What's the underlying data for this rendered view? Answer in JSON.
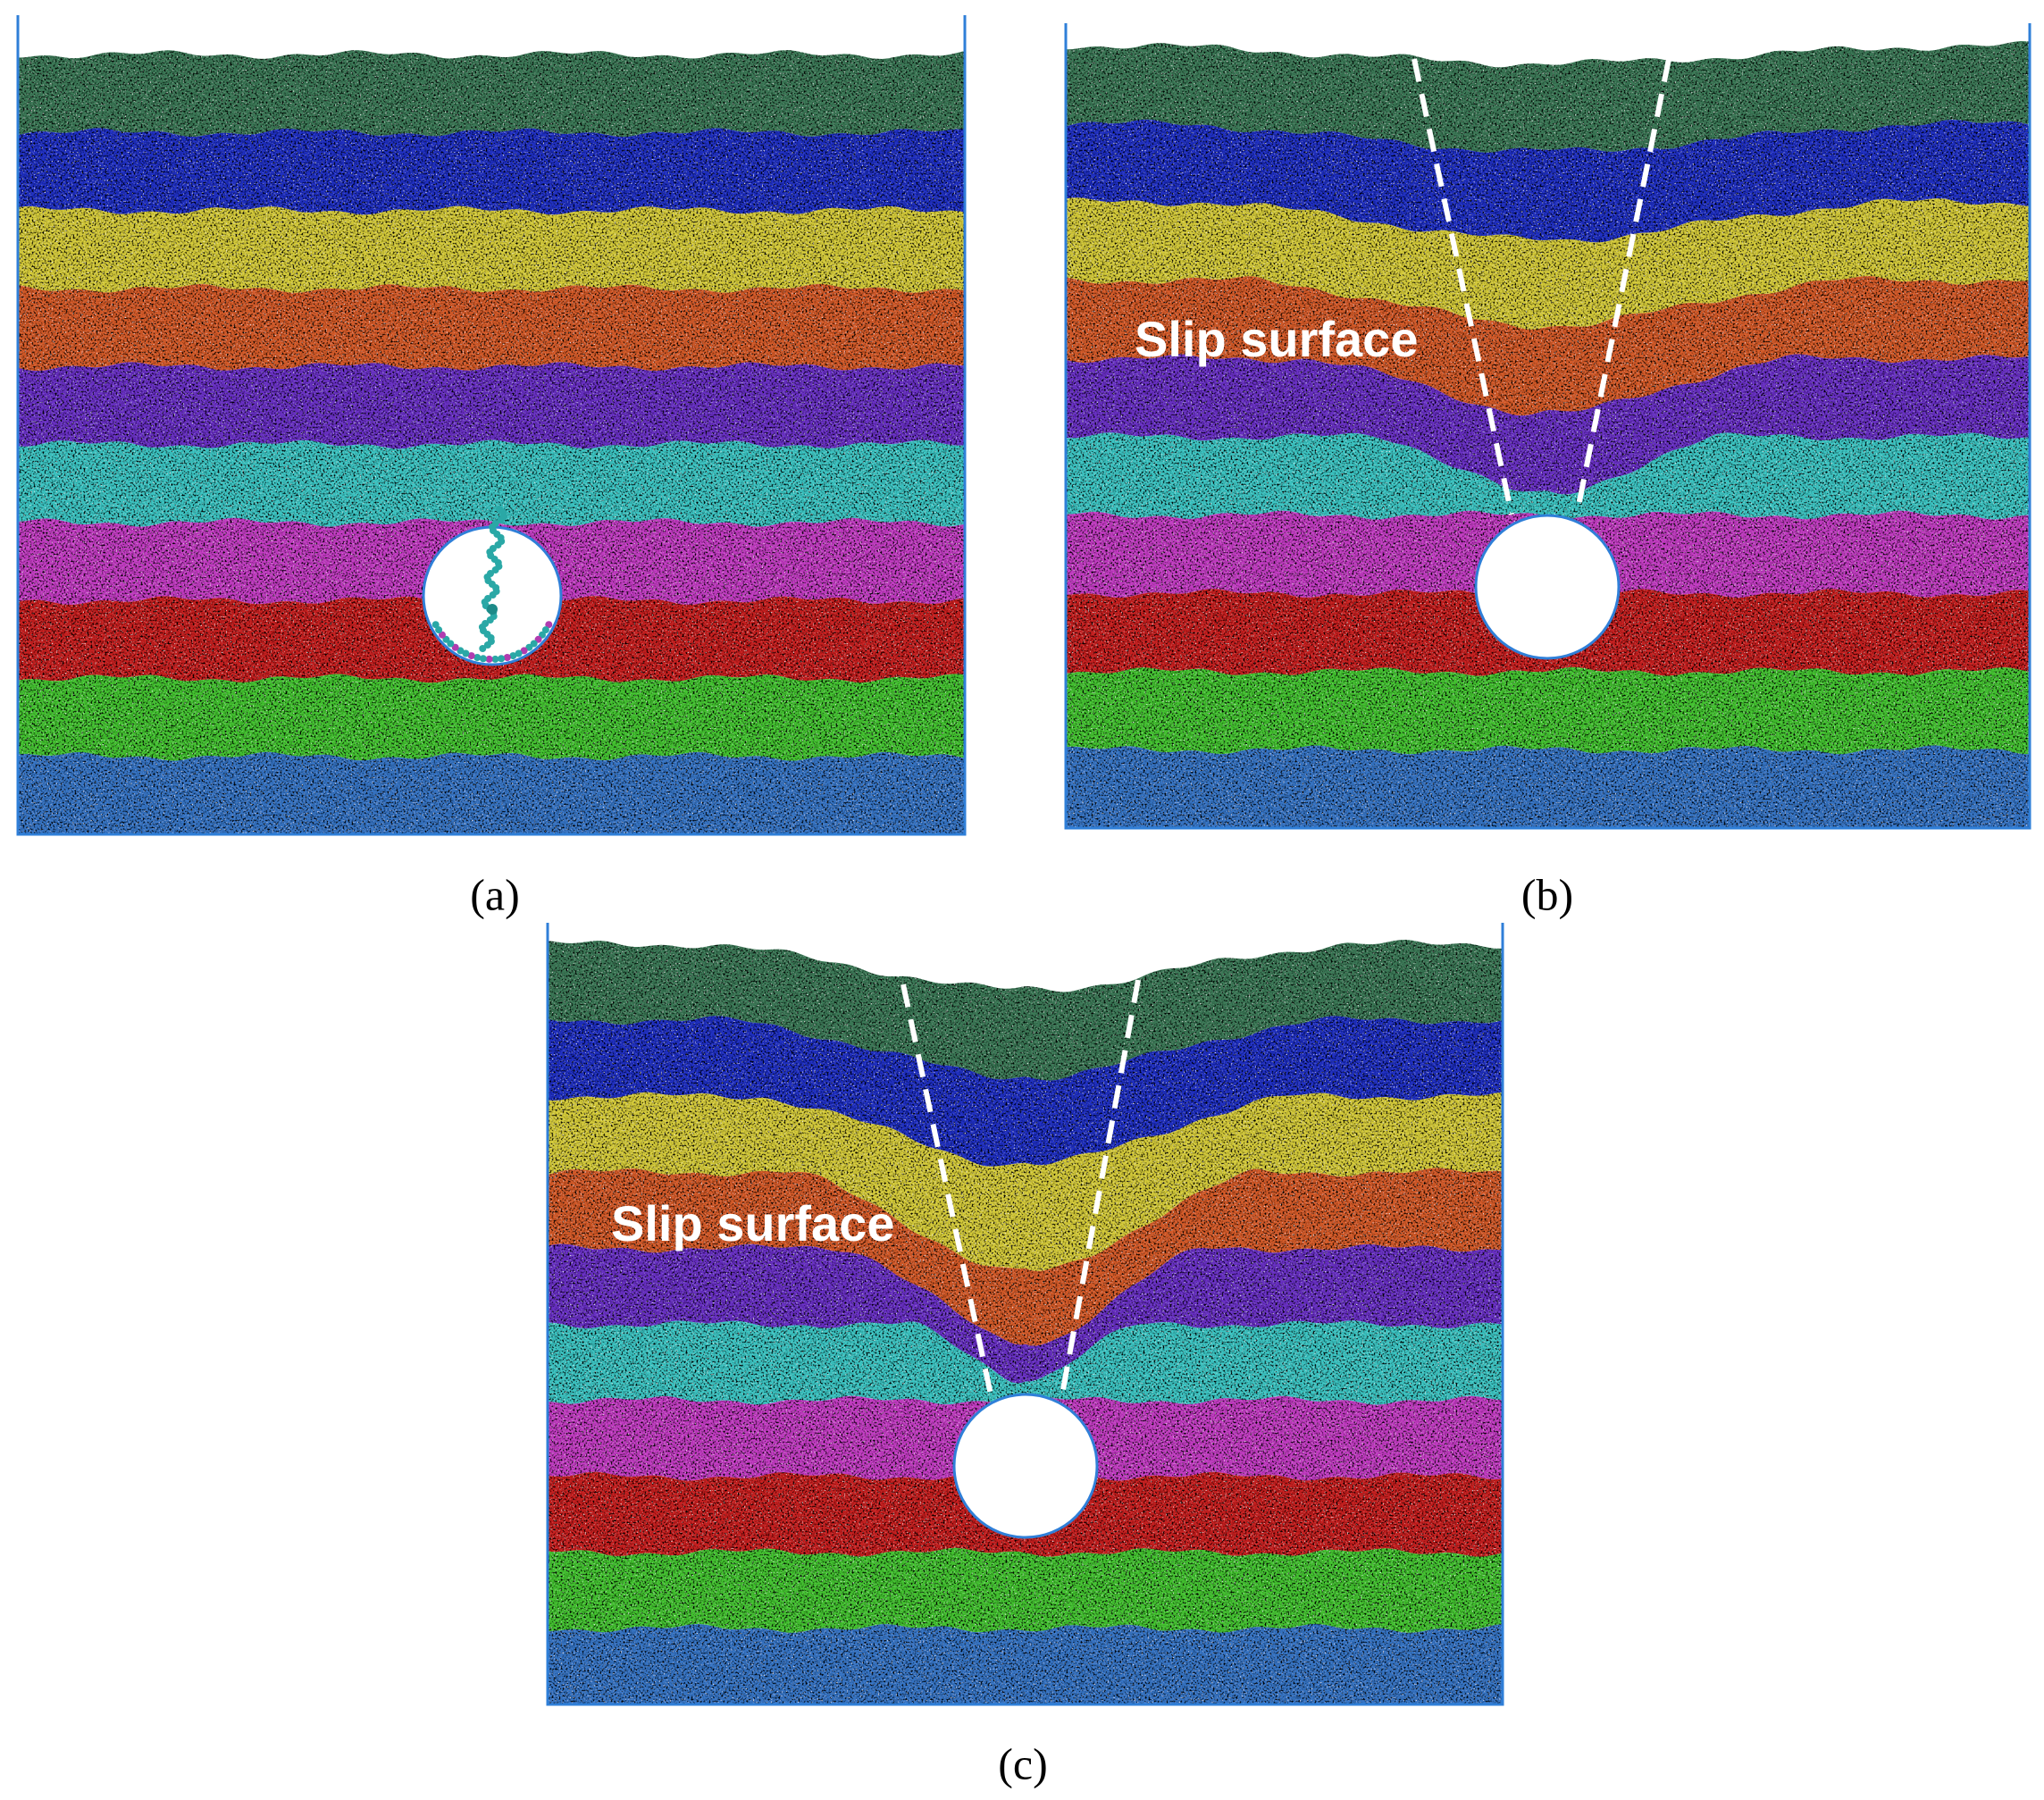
{
  "panels": [
    {
      "label": "(a)"
    },
    {
      "label": "(b)",
      "annotation": "Slip surface"
    },
    {
      "label": "(c)",
      "annotation": "Slip surface"
    }
  ]
}
